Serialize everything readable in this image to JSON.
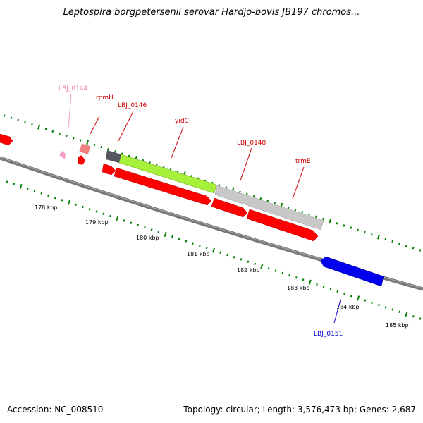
{
  "title": "Leptospira borgpetersenii serovar Hardjo-bovis JB197 chromos...",
  "footer": {
    "accession": "Accession: NC_008510",
    "stats": "Topology: circular; Length: 3,576,473 bp; Genes: 2,687"
  },
  "scale_labels": [
    "178 kbp",
    "179 kbp",
    "180 kbp",
    "181 kbp",
    "182 kbp",
    "183 kbp",
    "184 kbp",
    "185 kbp"
  ],
  "gene_labels": {
    "lbj0144": "LBJ_0144",
    "rpmH": "rpmH",
    "lbj0146": "LBJ_0146",
    "yidC": "yidC",
    "lbj0148": "LBJ_0148",
    "trmE": "trmE",
    "lbj0151": "LBJ_0151"
  },
  "colors": {
    "cds": "#ff0000",
    "gene_green": "#a6f03a",
    "gene_gray": "#c8c8c8",
    "gene_dark": "#555560",
    "gene_pink": "#f4a0c8",
    "gene_salmon": "#f08080",
    "gene_blue": "#0000ee",
    "label_red": "#cc0000",
    "label_pink": "#f080b8",
    "label_blue": "#0000cc",
    "ticks": "#008000"
  }
}
